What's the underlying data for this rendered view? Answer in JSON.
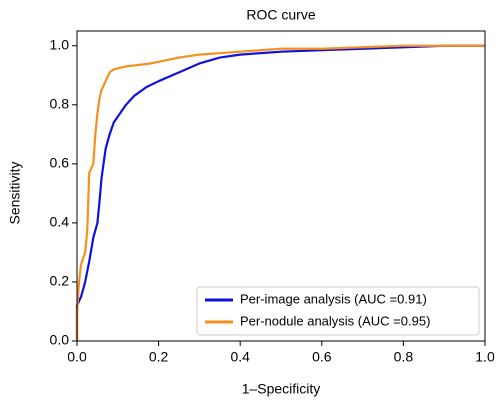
{
  "chart_data": {
    "type": "line",
    "title": "ROC curve",
    "x_label": "1–Specificity",
    "y_label": "Sensitivity",
    "xlim": [
      0,
      1
    ],
    "ylim": [
      0,
      1.05
    ],
    "xticks": [
      {
        "value": 0,
        "label": "0.0"
      },
      0.2,
      0.4,
      0.6,
      0.8,
      {
        "value": 1,
        "label": "1.0"
      }
    ],
    "yticks": [
      {
        "value": 0,
        "label": "0.0"
      },
      0.2,
      0.4,
      0.6,
      0.8,
      {
        "value": 1,
        "label": "1.0"
      }
    ],
    "grid": false,
    "legend": "lower right",
    "series": [
      {
        "name": "Per-image analysis (AUC =0.91)",
        "color": "#1010e0",
        "x": [
          0,
          0,
          0.01,
          0.02,
          0.03,
          0.04,
          0.05,
          0.055,
          0.06,
          0.065,
          0.07,
          0.08,
          0.09,
          0.1,
          0.12,
          0.14,
          0.17,
          0.2,
          0.25,
          0.3,
          0.35,
          0.4,
          0.5,
          0.6,
          0.7,
          0.8,
          0.9,
          1
        ],
        "values": [
          0,
          0.12,
          0.15,
          0.2,
          0.27,
          0.35,
          0.4,
          0.47,
          0.55,
          0.6,
          0.65,
          0.7,
          0.74,
          0.76,
          0.8,
          0.83,
          0.86,
          0.88,
          0.91,
          0.94,
          0.96,
          0.97,
          0.98,
          0.985,
          0.99,
          0.995,
          1,
          1
        ]
      },
      {
        "name": "Per-nodule analysis (AUC =0.95)",
        "color": "#f7901e",
        "x": [
          0,
          0,
          0.005,
          0.01,
          0.02,
          0.025,
          0.03,
          0.04,
          0.045,
          0.05,
          0.055,
          0.06,
          0.07,
          0.08,
          0.09,
          0.12,
          0.18,
          0.25,
          0.3,
          0.4,
          0.5,
          0.6,
          0.7,
          0.8,
          1
        ],
        "values": [
          0,
          0.1,
          0.2,
          0.26,
          0.3,
          0.37,
          0.57,
          0.6,
          0.7,
          0.77,
          0.82,
          0.85,
          0.88,
          0.91,
          0.92,
          0.93,
          0.94,
          0.96,
          0.97,
          0.98,
          0.99,
          0.99,
          0.995,
          1,
          1
        ]
      }
    ]
  }
}
